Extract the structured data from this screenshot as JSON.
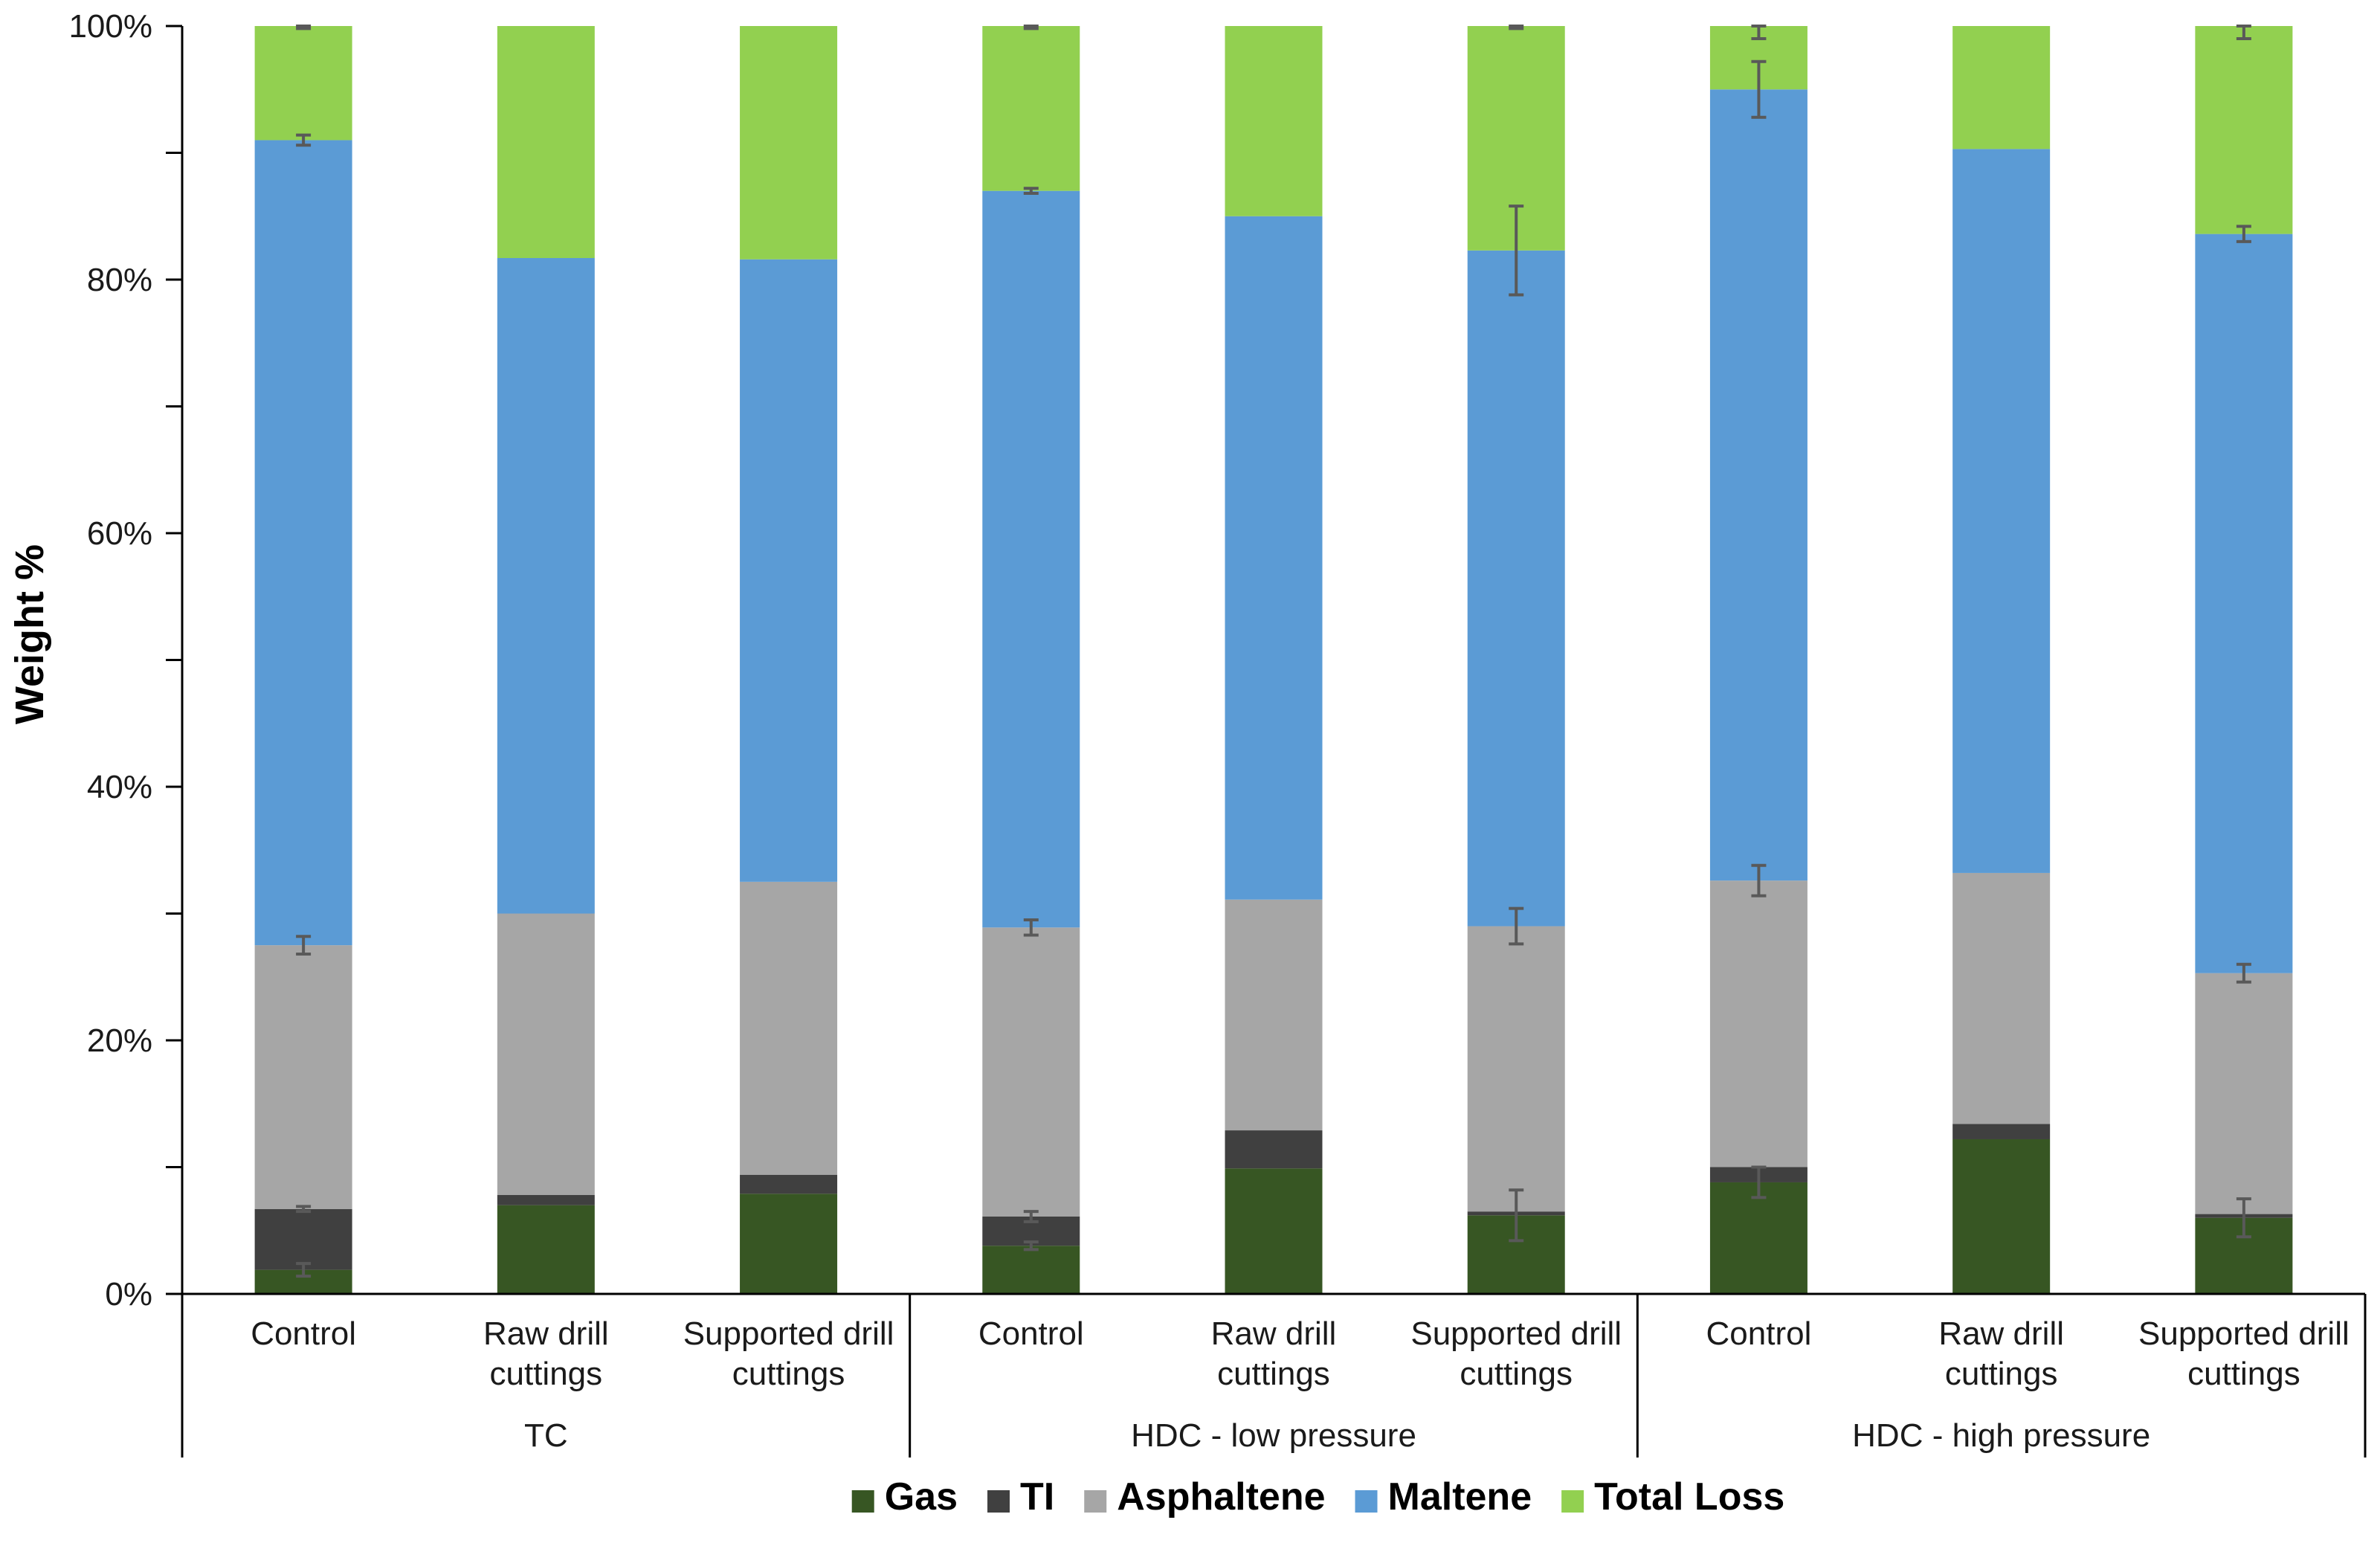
{
  "chart_data": {
    "type": "bar",
    "stacked": true,
    "percent_stacked": true,
    "title": "",
    "ylabel": "Weight %",
    "xlabel": "",
    "ylim": [
      0,
      100
    ],
    "y_ticks": [
      "0%",
      "20%",
      "40%",
      "60%",
      "80%",
      "100%"
    ],
    "y_tick_values": [
      0,
      20,
      40,
      60,
      80,
      100
    ],
    "groups": [
      {
        "name": "TC",
        "categories": [
          "Control",
          "Raw drill\ncuttings",
          "Supported drill\ncuttings"
        ]
      },
      {
        "name": "HDC - low pressure",
        "categories": [
          "Control",
          "Raw drill\ncuttings",
          "Supported drill\ncuttings"
        ]
      },
      {
        "name": "HDC - high pressure",
        "categories": [
          "Control",
          "Raw drill\ncuttings",
          "Supported drill\ncuttings"
        ]
      }
    ],
    "series": [
      {
        "name": "Gas",
        "color": "#375623",
        "values": [
          1.9,
          7.0,
          7.9,
          3.8,
          9.9,
          6.2,
          8.8,
          12.2,
          6.0
        ],
        "errors": [
          0.5,
          null,
          null,
          0.3,
          null,
          2.0,
          1.2,
          null,
          1.5
        ]
      },
      {
        "name": "TI",
        "color": "#404040",
        "values": [
          4.8,
          0.8,
          1.5,
          2.3,
          3.0,
          0.3,
          1.2,
          1.2,
          0.3
        ],
        "errors": [
          0.2,
          null,
          null,
          0.4,
          null,
          null,
          null,
          null,
          null
        ]
      },
      {
        "name": "Asphaltene",
        "color": "#a6a6a6",
        "values": [
          20.8,
          22.2,
          23.1,
          22.8,
          18.2,
          22.5,
          22.6,
          19.8,
          19.0
        ],
        "errors": [
          0.7,
          null,
          null,
          0.6,
          null,
          1.4,
          1.2,
          null,
          0.7
        ]
      },
      {
        "name": "Maltene",
        "color": "#5b9bd5",
        "values": [
          63.5,
          51.7,
          49.1,
          58.1,
          53.9,
          53.3,
          62.4,
          57.1,
          58.3
        ],
        "errors": [
          0.4,
          null,
          null,
          0.2,
          null,
          3.5,
          2.2,
          null,
          0.6
        ]
      },
      {
        "name": "Total Loss",
        "color": "#92d050",
        "values": [
          9.0,
          18.3,
          18.4,
          13.0,
          15.0,
          17.7,
          5.0,
          9.7,
          16.4
        ],
        "errors": [
          0.2,
          null,
          null,
          0.2,
          null,
          0.2,
          1.0,
          null,
          1.0
        ]
      }
    ],
    "legend_position": "bottom",
    "grid": false
  }
}
